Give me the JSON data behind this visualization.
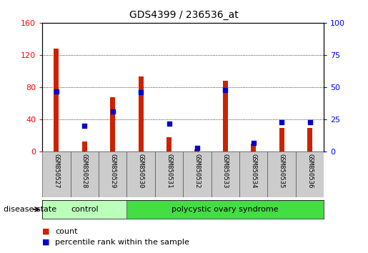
{
  "title": "GDS4399 / 236536_at",
  "samples": [
    "GSM850527",
    "GSM850528",
    "GSM850529",
    "GSM850530",
    "GSM850531",
    "GSM850532",
    "GSM850533",
    "GSM850534",
    "GSM850535",
    "GSM850536"
  ],
  "count_values": [
    128,
    13,
    68,
    93,
    18,
    3,
    88,
    10,
    30,
    30
  ],
  "percentile_values": [
    47,
    20,
    31,
    46,
    22,
    3,
    48,
    7,
    23,
    23
  ],
  "left_ylim": [
    0,
    160
  ],
  "right_ylim": [
    0,
    100
  ],
  "left_yticks": [
    0,
    40,
    80,
    120,
    160
  ],
  "right_yticks": [
    0,
    25,
    50,
    75,
    100
  ],
  "bar_color": "#cc2200",
  "dot_color": "#0000cc",
  "control_color": "#bbffbb",
  "pcos_color": "#44dd44",
  "control_label": "control",
  "pcos_label": "polycystic ovary syndrome",
  "disease_state_label": "disease state",
  "legend_count": "count",
  "legend_percentile": "percentile rank within the sample",
  "grid_color": "#000000",
  "background_color": "#ffffff",
  "tick_bg_color": "#cccccc",
  "bar_width": 0.18
}
